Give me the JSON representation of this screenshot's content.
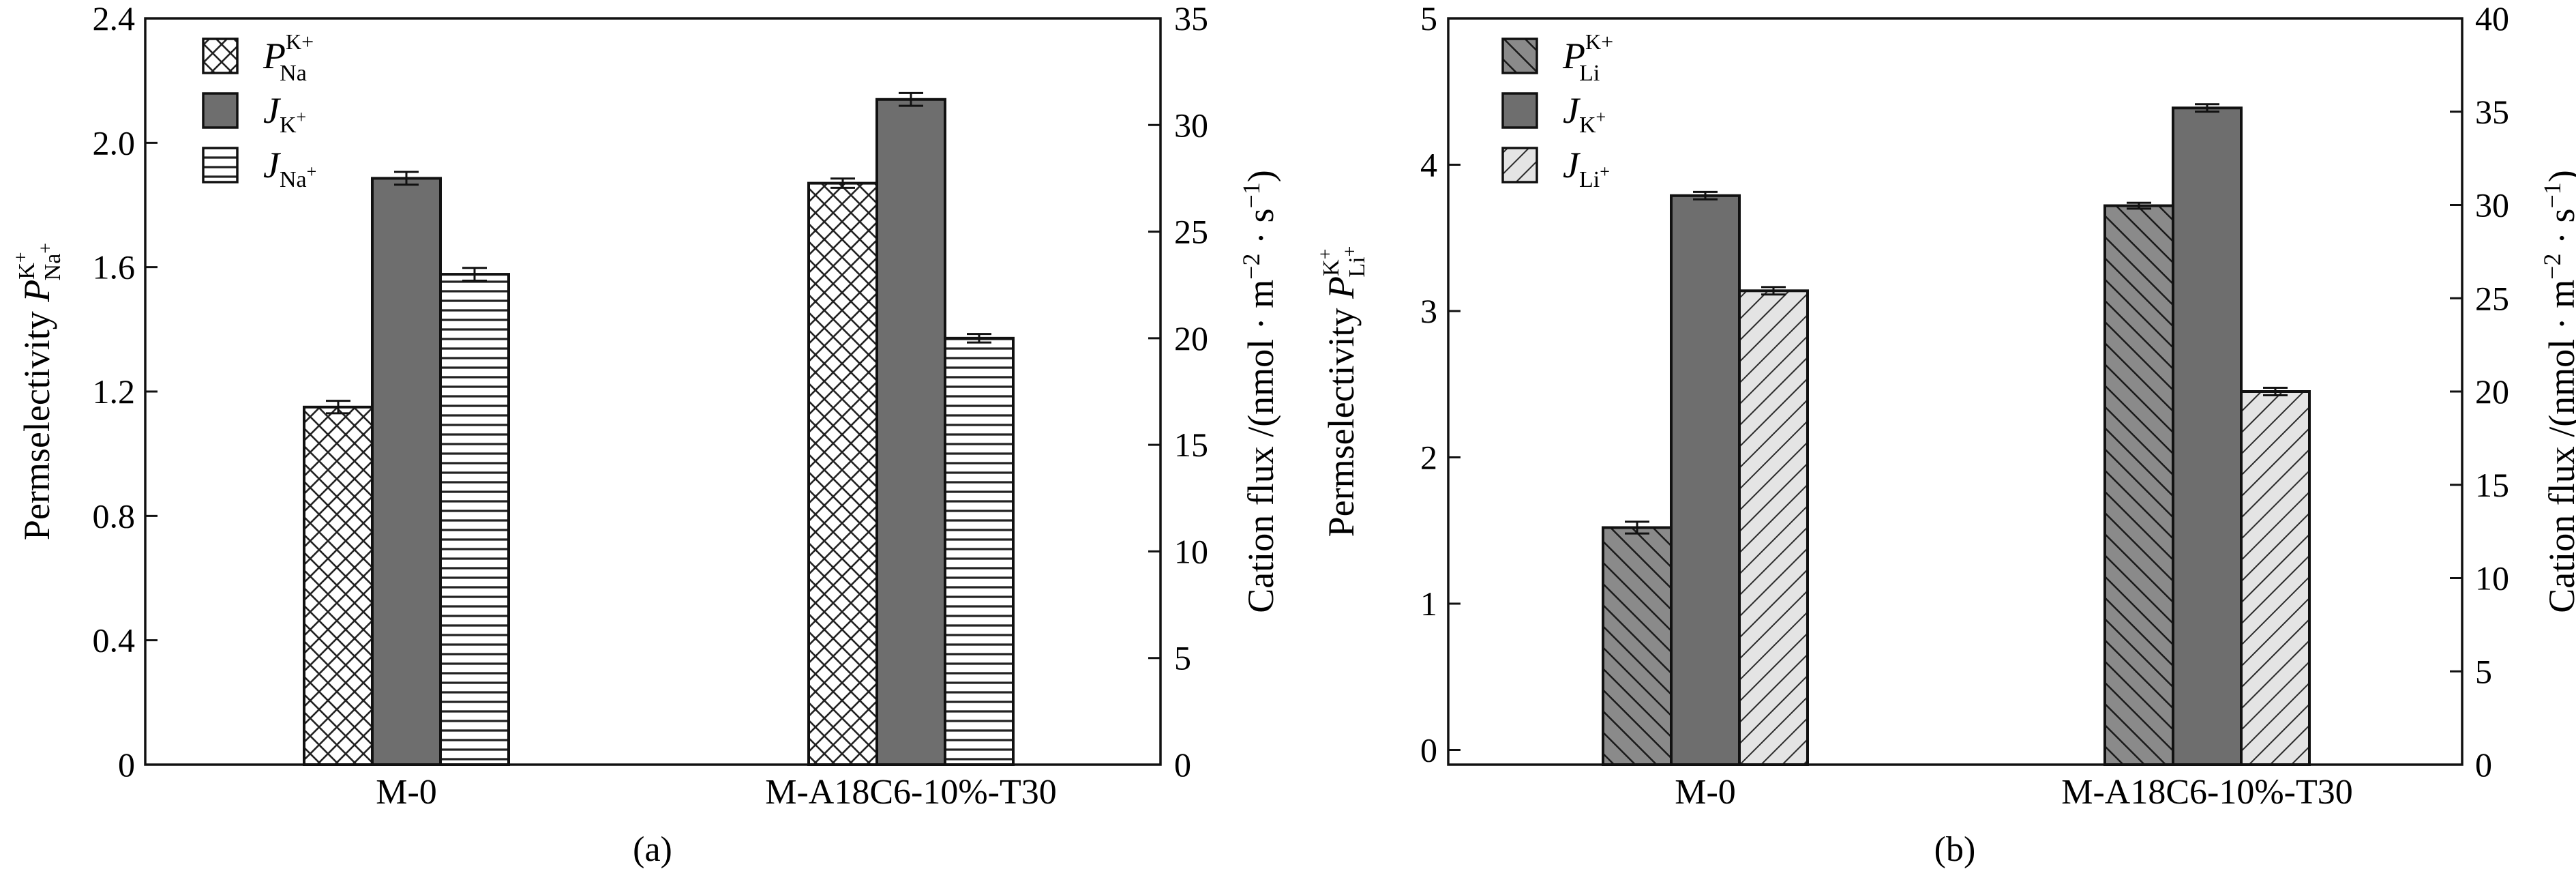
{
  "chart_data": [
    {
      "id": "a",
      "type": "bar",
      "panel_label": "(a)",
      "categories": [
        "M-0",
        "M-A18C6-10%-T30"
      ],
      "left_axis": {
        "label_main": "Permselectivity ",
        "label_sym": "P",
        "label_sup": "K",
        "label_sup2": "+",
        "label_sub": "Na",
        "label_sub2": "+",
        "ylim": [
          0,
          2.4
        ],
        "ticks": [
          0,
          0.4,
          0.8,
          1.2,
          1.6,
          2.0,
          2.4
        ],
        "tick_labels": [
          "0",
          "0.4",
          "0.8",
          "1.2",
          "1.6",
          "2.0",
          "2.4"
        ]
      },
      "right_axis": {
        "label_pre": "Cation flux /(nmol · m",
        "label_exp1": "−2",
        "label_mid": " · s",
        "label_exp2": "−1",
        "label_post": ")",
        "ylim": [
          0,
          35
        ],
        "ticks": [
          0,
          5,
          10,
          15,
          20,
          25,
          30,
          35
        ],
        "tick_labels": [
          "0",
          "5",
          "10",
          "15",
          "20",
          "25",
          "30",
          "35"
        ]
      },
      "series": [
        {
          "key": "P",
          "axis": "left",
          "pattern": "crosshatch",
          "legend": {
            "sym": "P",
            "sup": "K+",
            "sub": "Na"
          },
          "values": [
            1.15,
            1.87
          ],
          "errors": [
            0.02,
            0.015
          ]
        },
        {
          "key": "JK",
          "axis": "right",
          "pattern": "solid",
          "legend": {
            "sym": "J",
            "sub": "K",
            "subsup": "+"
          },
          "values": [
            27.5,
            31.2
          ],
          "errors": [
            0.3,
            0.3
          ]
        },
        {
          "key": "JNa",
          "axis": "right",
          "pattern": "horizontal",
          "legend": {
            "sym": "J",
            "sub": "Na",
            "subsup": "+"
          },
          "values": [
            23.0,
            20.0
          ],
          "errors": [
            0.3,
            0.2
          ]
        }
      ],
      "colors": {
        "solid": "#6e6e6e",
        "pattern_fill": "#ffffff",
        "stroke": "#111111"
      }
    },
    {
      "id": "b",
      "type": "bar",
      "panel_label": "(b)",
      "categories": [
        "M-0",
        "M-A18C6-10%-T30"
      ],
      "left_axis": {
        "label_main": "Permselectivity ",
        "label_sym": "P",
        "label_sup": "K",
        "label_sup2": "+",
        "label_sub": "Li",
        "label_sub2": "+",
        "ylim": [
          -0.1,
          5
        ],
        "ticks": [
          0,
          1,
          2,
          3,
          4,
          5
        ],
        "tick_labels": [
          "0",
          "1",
          "2",
          "3",
          "4",
          "5"
        ]
      },
      "right_axis": {
        "label_pre": "Cation flux /(nmol · m",
        "label_exp1": "−2",
        "label_mid": " · s",
        "label_exp2": "−1",
        "label_post": ")",
        "ylim": [
          0,
          40
        ],
        "ticks": [
          0,
          5,
          10,
          15,
          20,
          25,
          30,
          35,
          40
        ],
        "tick_labels": [
          "0",
          "5",
          "10",
          "15",
          "20",
          "25",
          "30",
          "35",
          "40"
        ]
      },
      "series": [
        {
          "key": "P",
          "axis": "left",
          "pattern": "diagonal-dark",
          "legend": {
            "sym": "P",
            "sup": "K+",
            "sub": "Li"
          },
          "values": [
            1.52,
            3.72
          ],
          "errors": [
            0.04,
            0.02
          ]
        },
        {
          "key": "JK",
          "axis": "right",
          "pattern": "solid",
          "legend": {
            "sym": "J",
            "sub": "K",
            "subsup": "+"
          },
          "values": [
            30.5,
            35.2
          ],
          "errors": [
            0.2,
            0.2
          ]
        },
        {
          "key": "JLi",
          "axis": "right",
          "pattern": "diagonal-light",
          "legend": {
            "sym": "J",
            "sub": "Li",
            "subsup": "+"
          },
          "values": [
            25.4,
            20.0
          ],
          "errors": [
            0.2,
            0.2
          ]
        }
      ],
      "colors": {
        "solid": "#6e6e6e",
        "pattern_fill": "#ffffff",
        "hatch_dark_fill": "#8a8a8a",
        "hatch_light_fill": "#e4e4e4",
        "stroke": "#111111"
      }
    }
  ]
}
